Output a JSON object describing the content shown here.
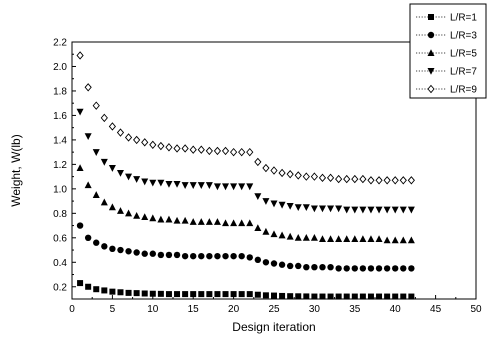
{
  "chart_data": {
    "type": "scatter",
    "title": "",
    "xlabel": "Design iteration",
    "ylabel": "Weight, W(lb)",
    "xlim": [
      0,
      50
    ],
    "ylim": [
      0.1,
      2.2
    ],
    "x_ticks": [
      0,
      5,
      10,
      15,
      20,
      25,
      30,
      35,
      40,
      45,
      50
    ],
    "y_ticks": [
      0.2,
      0.4,
      0.6,
      0.8,
      1.0,
      1.2,
      1.4,
      1.6,
      1.8,
      2.0,
      2.2
    ],
    "x_tick_labels": [
      "0",
      "5",
      "10",
      "15",
      "20",
      "25",
      "30",
      "35",
      "40",
      "45",
      "50"
    ],
    "y_tick_labels": [
      "0.2",
      "0.4",
      "0.6",
      "0.8",
      "1.0",
      "1.2",
      "1.4",
      "1.6",
      "1.8",
      "2.0",
      "2.2"
    ],
    "grid": false,
    "legend_position": "top-right",
    "series": [
      {
        "name": "L/R=1",
        "marker": "square",
        "x": [
          1,
          2,
          3,
          4,
          5,
          6,
          7,
          8,
          9,
          10,
          11,
          12,
          13,
          14,
          15,
          16,
          17,
          18,
          19,
          20,
          21,
          22,
          23,
          24,
          25,
          26,
          27,
          28,
          29,
          30,
          31,
          32,
          33,
          34,
          35,
          36,
          37,
          38,
          39,
          40,
          41,
          42
        ],
        "y": [
          0.23,
          0.2,
          0.18,
          0.17,
          0.16,
          0.155,
          0.15,
          0.148,
          0.145,
          0.143,
          0.142,
          0.14,
          0.14,
          0.14,
          0.14,
          0.14,
          0.14,
          0.14,
          0.14,
          0.14,
          0.14,
          0.14,
          0.135,
          0.13,
          0.128,
          0.125,
          0.123,
          0.122,
          0.121,
          0.12,
          0.12,
          0.12,
          0.12,
          0.12,
          0.12,
          0.12,
          0.12,
          0.12,
          0.12,
          0.12,
          0.12,
          0.12
        ]
      },
      {
        "name": "L/R=3",
        "marker": "circle",
        "x": [
          1,
          2,
          3,
          4,
          5,
          6,
          7,
          8,
          9,
          10,
          11,
          12,
          13,
          14,
          15,
          16,
          17,
          18,
          19,
          20,
          21,
          22,
          23,
          24,
          25,
          26,
          27,
          28,
          29,
          30,
          31,
          32,
          33,
          34,
          35,
          36,
          37,
          38,
          39,
          40,
          41,
          42
        ],
        "y": [
          0.7,
          0.6,
          0.56,
          0.53,
          0.51,
          0.5,
          0.49,
          0.48,
          0.47,
          0.47,
          0.46,
          0.46,
          0.46,
          0.45,
          0.45,
          0.45,
          0.45,
          0.45,
          0.45,
          0.45,
          0.45,
          0.44,
          0.42,
          0.4,
          0.39,
          0.38,
          0.37,
          0.37,
          0.36,
          0.36,
          0.36,
          0.36,
          0.35,
          0.35,
          0.35,
          0.35,
          0.35,
          0.35,
          0.35,
          0.35,
          0.35,
          0.35
        ]
      },
      {
        "name": "L/R=5",
        "marker": "triangle-up",
        "x": [
          1,
          2,
          3,
          4,
          5,
          6,
          7,
          8,
          9,
          10,
          11,
          12,
          13,
          14,
          15,
          16,
          17,
          18,
          19,
          20,
          21,
          22,
          23,
          24,
          25,
          26,
          27,
          28,
          29,
          30,
          31,
          32,
          33,
          34,
          35,
          36,
          37,
          38,
          39,
          40,
          41,
          42
        ],
        "y": [
          1.17,
          1.03,
          0.95,
          0.89,
          0.85,
          0.82,
          0.8,
          0.78,
          0.77,
          0.76,
          0.75,
          0.75,
          0.74,
          0.74,
          0.73,
          0.73,
          0.73,
          0.73,
          0.72,
          0.72,
          0.72,
          0.72,
          0.68,
          0.65,
          0.63,
          0.62,
          0.61,
          0.6,
          0.6,
          0.6,
          0.59,
          0.59,
          0.59,
          0.59,
          0.59,
          0.59,
          0.59,
          0.59,
          0.58,
          0.58,
          0.58,
          0.58
        ]
      },
      {
        "name": "L/R=7",
        "marker": "triangle-down",
        "x": [
          1,
          2,
          3,
          4,
          5,
          6,
          7,
          8,
          9,
          10,
          11,
          12,
          13,
          14,
          15,
          16,
          17,
          18,
          19,
          20,
          21,
          22,
          23,
          24,
          25,
          26,
          27,
          28,
          29,
          30,
          31,
          32,
          33,
          34,
          35,
          36,
          37,
          38,
          39,
          40,
          41,
          42
        ],
        "y": [
          1.63,
          1.43,
          1.3,
          1.22,
          1.17,
          1.13,
          1.1,
          1.08,
          1.06,
          1.05,
          1.05,
          1.04,
          1.04,
          1.03,
          1.03,
          1.03,
          1.03,
          1.02,
          1.02,
          1.02,
          1.02,
          1.02,
          0.94,
          0.9,
          0.88,
          0.87,
          0.86,
          0.85,
          0.85,
          0.84,
          0.84,
          0.84,
          0.84,
          0.83,
          0.83,
          0.83,
          0.83,
          0.83,
          0.83,
          0.83,
          0.83,
          0.83
        ]
      },
      {
        "name": "L/R=9",
        "marker": "diamond",
        "x": [
          1,
          2,
          3,
          4,
          5,
          6,
          7,
          8,
          9,
          10,
          11,
          12,
          13,
          14,
          15,
          16,
          17,
          18,
          19,
          20,
          21,
          22,
          23,
          24,
          25,
          26,
          27,
          28,
          29,
          30,
          31,
          32,
          33,
          34,
          35,
          36,
          37,
          38,
          39,
          40,
          41,
          42
        ],
        "y": [
          2.09,
          1.83,
          1.68,
          1.58,
          1.51,
          1.46,
          1.42,
          1.4,
          1.38,
          1.36,
          1.35,
          1.34,
          1.33,
          1.33,
          1.32,
          1.32,
          1.31,
          1.31,
          1.31,
          1.3,
          1.3,
          1.3,
          1.22,
          1.17,
          1.15,
          1.13,
          1.12,
          1.11,
          1.1,
          1.1,
          1.09,
          1.09,
          1.08,
          1.08,
          1.08,
          1.08,
          1.07,
          1.07,
          1.07,
          1.07,
          1.07,
          1.07
        ]
      }
    ]
  }
}
